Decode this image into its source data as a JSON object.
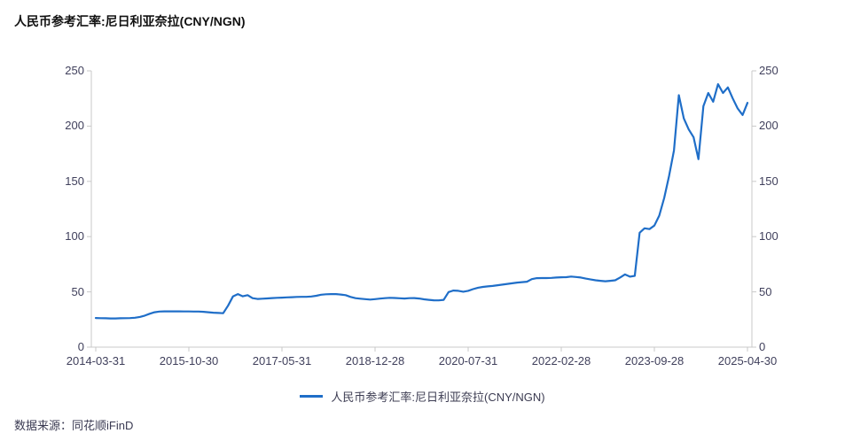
{
  "header": {
    "title": "人民币参考汇率:尼日利亚奈拉(CNY/NGN)"
  },
  "footer": {
    "source_label": "数据来源：同花顺iFinD"
  },
  "legend": {
    "label": "人民币参考汇率:尼日利亚奈拉(CNY/NGN)",
    "line_color": "#1f6ec8"
  },
  "chart_data": {
    "type": "line",
    "title": "人民币参考汇率:尼日利亚奈拉(CNY/NGN)",
    "xlabel": "",
    "ylabel": "",
    "ylim": [
      0,
      250
    ],
    "grid": false,
    "legend_position": "bottom-center",
    "axis_color": "#c9c9c9",
    "label_color": "#40405c",
    "y_tick_labels": [
      "250",
      "200",
      "150",
      "100",
      "50",
      "0"
    ],
    "y_tick_values": [
      250,
      200,
      150,
      100,
      50,
      0
    ],
    "x_tick_labels": [
      "2014-03-31",
      "2015-10-30",
      "2017-05-31",
      "2018-12-28",
      "2020-07-31",
      "2022-02-28",
      "2023-09-28",
      "2025-04-30"
    ],
    "x_tick_month_indices": [
      0,
      19,
      38,
      57,
      76,
      95,
      114,
      133
    ],
    "x_start_month": "2014-03",
    "x_end_month": "2025-04",
    "x_frequency": "monthly",
    "series": [
      {
        "name": "人民币参考汇率:尼日利亚奈拉(CNY/NGN)",
        "color": "#1f6ec8",
        "values": [
          26.4,
          26.2,
          26.1,
          26.0,
          26.0,
          26.1,
          26.2,
          26.3,
          26.6,
          27.3,
          28.5,
          30.2,
          31.6,
          32.2,
          32.4,
          32.4,
          32.4,
          32.4,
          32.3,
          32.3,
          32.2,
          32.2,
          32.0,
          31.6,
          31.2,
          30.9,
          30.7,
          37.5,
          45.8,
          48.0,
          46.0,
          47.0,
          44.3,
          43.6,
          43.8,
          44.1,
          44.4,
          44.6,
          44.8,
          45.0,
          45.2,
          45.4,
          45.5,
          45.5,
          45.8,
          46.5,
          47.4,
          47.8,
          48.0,
          48.0,
          47.6,
          47.0,
          45.4,
          44.3,
          43.8,
          43.4,
          43.0,
          43.4,
          43.9,
          44.3,
          44.6,
          44.5,
          44.2,
          44.0,
          44.3,
          44.4,
          44.0,
          43.3,
          42.8,
          42.4,
          42.3,
          42.8,
          49.8,
          51.2,
          51.0,
          50.2,
          51.0,
          52.5,
          53.8,
          54.5,
          55.0,
          55.4,
          56.0,
          56.6,
          57.2,
          57.8,
          58.4,
          58.8,
          59.2,
          61.5,
          62.4,
          62.5,
          62.5,
          62.7,
          63.0,
          63.2,
          63.3,
          63.9,
          63.5,
          63.0,
          62.0,
          61.2,
          60.5,
          60.0,
          59.6,
          60.0,
          60.5,
          63.0,
          65.8,
          63.8,
          64.5,
          103.5,
          107.5,
          106.8,
          110.0,
          119.0,
          135.0,
          155.0,
          178.0,
          228.0,
          207.0,
          197.0,
          190.0,
          170.0,
          218.0,
          230.0,
          222.0,
          238.0,
          230.0,
          235.0,
          225.0,
          216.0,
          210.0,
          221.0
        ]
      }
    ]
  }
}
